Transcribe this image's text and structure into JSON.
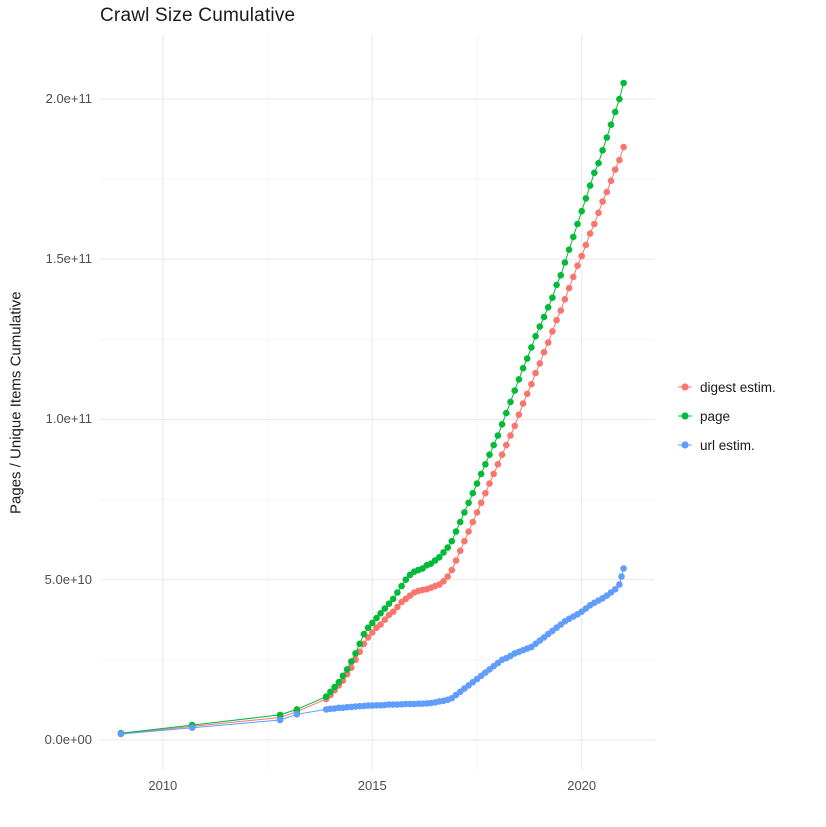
{
  "chart_data": {
    "type": "scatter",
    "geom": "point+line",
    "title": "Crawl Size Cumulative",
    "xlabel": "",
    "ylabel": "Pages / Unique Items Cumulative",
    "legend_position": "right",
    "grid": true,
    "panel": {
      "background": "#FFFFFF",
      "grid_major_color": "#EBEBEB",
      "grid_minor_color": "#F5F5F5"
    },
    "text_colors": {
      "title": "#1A1A1A",
      "axis_label": "#1A1A1A",
      "tick_label": "#4D4D4D"
    },
    "x_axis": {
      "range": [
        2008.5,
        2021.75
      ],
      "ticks": [
        2010,
        2015,
        2020
      ],
      "tick_labels": [
        "2010",
        "2015",
        "2020"
      ],
      "minor_ticks": [
        2012.5,
        2017.5
      ]
    },
    "y_axis": {
      "range": [
        -9400000000.0,
        220000000000.0
      ],
      "ticks": [
        0,
        50000000000.0,
        100000000000.0,
        150000000000.0,
        200000000000.0
      ],
      "tick_labels": [
        "0.0e+00",
        "5.0e+10",
        "1.0e+11",
        "1.5e+11",
        "2.0e+11"
      ],
      "minor_ticks": [
        25000000000.0,
        75000000000.0,
        125000000000.0,
        175000000000.0
      ]
    },
    "series": [
      {
        "name": "digest estim.",
        "color": "#F8766D",
        "points": [
          [
            2009.0,
            1900000000.0
          ],
          [
            2010.7,
            4200000000.0
          ],
          [
            2012.8,
            7000000000.0
          ],
          [
            2013.2,
            8800000000.0
          ],
          [
            2013.9,
            12800000000.0
          ],
          [
            2014.0,
            14000000000.0
          ],
          [
            2014.1,
            15500000000.0
          ],
          [
            2014.2,
            17000000000.0
          ],
          [
            2014.3,
            18500000000.0
          ],
          [
            2014.4,
            20500000000.0
          ],
          [
            2014.5,
            22500000000.0
          ],
          [
            2014.6,
            25000000000.0
          ],
          [
            2014.7,
            27500000000.0
          ],
          [
            2014.8,
            30000000000.0
          ],
          [
            2014.9,
            32000000000.0
          ],
          [
            2015.0,
            33500000000.0
          ],
          [
            2015.1,
            35000000000.0
          ],
          [
            2015.2,
            36000000000.0
          ],
          [
            2015.3,
            37500000000.0
          ],
          [
            2015.4,
            39000000000.0
          ],
          [
            2015.5,
            40000000000.0
          ],
          [
            2015.6,
            41500000000.0
          ],
          [
            2015.7,
            43000000000.0
          ],
          [
            2015.8,
            44000000000.0
          ],
          [
            2015.9,
            45000000000.0
          ],
          [
            2016.0,
            46000000000.0
          ],
          [
            2016.1,
            46500000000.0
          ],
          [
            2016.2,
            46800000000.0
          ],
          [
            2016.3,
            47000000000.0
          ],
          [
            2016.4,
            47500000000.0
          ],
          [
            2016.5,
            48000000000.0
          ],
          [
            2016.6,
            48500000000.0
          ],
          [
            2016.7,
            49500000000.0
          ],
          [
            2016.8,
            51000000000.0
          ],
          [
            2016.9,
            53000000000.0
          ],
          [
            2017.0,
            56000000000.0
          ],
          [
            2017.1,
            59000000000.0
          ],
          [
            2017.2,
            62000000000.0
          ],
          [
            2017.3,
            65000000000.0
          ],
          [
            2017.4,
            68000000000.0
          ],
          [
            2017.5,
            71000000000.0
          ],
          [
            2017.6,
            74000000000.0
          ],
          [
            2017.7,
            77000000000.0
          ],
          [
            2017.8,
            80000000000.0
          ],
          [
            2017.9,
            83000000000.0
          ],
          [
            2018.0,
            86000000000.0
          ],
          [
            2018.1,
            89000000000.0
          ],
          [
            2018.2,
            92000000000.0
          ],
          [
            2018.3,
            95000000000.0
          ],
          [
            2018.4,
            98000000000.0
          ],
          [
            2018.5,
            101500000000.0
          ],
          [
            2018.6,
            105000000000.0
          ],
          [
            2018.7,
            108000000000.0
          ],
          [
            2018.8,
            111000000000.0
          ],
          [
            2018.9,
            114500000000.0
          ],
          [
            2019.0,
            117500000000.0
          ],
          [
            2019.1,
            121000000000.0
          ],
          [
            2019.2,
            124000000000.0
          ],
          [
            2019.3,
            127500000000.0
          ],
          [
            2019.4,
            131000000000.0
          ],
          [
            2019.5,
            134000000000.0
          ],
          [
            2019.6,
            137500000000.0
          ],
          [
            2019.7,
            141000000000.0
          ],
          [
            2019.8,
            144500000000.0
          ],
          [
            2019.9,
            148000000000.0
          ],
          [
            2020.0,
            151000000000.0
          ],
          [
            2020.1,
            154500000000.0
          ],
          [
            2020.2,
            158000000000.0
          ],
          [
            2020.3,
            161000000000.0
          ],
          [
            2020.4,
            164500000000.0
          ],
          [
            2020.5,
            168000000000.0
          ],
          [
            2020.6,
            171000000000.0
          ],
          [
            2020.7,
            174500000000.0
          ],
          [
            2020.8,
            178000000000.0
          ],
          [
            2020.9,
            181000000000.0
          ],
          [
            2021.0,
            185000000000.0
          ]
        ]
      },
      {
        "name": "page",
        "color": "#00BA38",
        "points": [
          [
            2009.0,
            2100000000.0
          ],
          [
            2010.7,
            4600000000.0
          ],
          [
            2012.8,
            7800000000.0
          ],
          [
            2013.2,
            9500000000.0
          ],
          [
            2013.9,
            13500000000.0
          ],
          [
            2014.0,
            15000000000.0
          ],
          [
            2014.1,
            16500000000.0
          ],
          [
            2014.2,
            18000000000.0
          ],
          [
            2014.3,
            20000000000.0
          ],
          [
            2014.4,
            22000000000.0
          ],
          [
            2014.5,
            24500000000.0
          ],
          [
            2014.6,
            27000000000.0
          ],
          [
            2014.7,
            30000000000.0
          ],
          [
            2014.8,
            33000000000.0
          ],
          [
            2014.9,
            35000000000.0
          ],
          [
            2015.0,
            36500000000.0
          ],
          [
            2015.1,
            38000000000.0
          ],
          [
            2015.2,
            39500000000.0
          ],
          [
            2015.3,
            41000000000.0
          ],
          [
            2015.4,
            42500000000.0
          ],
          [
            2015.5,
            44000000000.0
          ],
          [
            2015.6,
            46000000000.0
          ],
          [
            2015.7,
            48000000000.0
          ],
          [
            2015.8,
            50000000000.0
          ],
          [
            2015.9,
            51500000000.0
          ],
          [
            2016.0,
            52500000000.0
          ],
          [
            2016.1,
            53000000000.0
          ],
          [
            2016.2,
            53500000000.0
          ],
          [
            2016.3,
            54500000000.0
          ],
          [
            2016.4,
            55000000000.0
          ],
          [
            2016.5,
            56000000000.0
          ],
          [
            2016.6,
            57000000000.0
          ],
          [
            2016.7,
            58500000000.0
          ],
          [
            2016.8,
            60000000000.0
          ],
          [
            2016.9,
            62000000000.0
          ],
          [
            2017.0,
            65000000000.0
          ],
          [
            2017.1,
            68000000000.0
          ],
          [
            2017.2,
            71000000000.0
          ],
          [
            2017.3,
            74000000000.0
          ],
          [
            2017.4,
            77000000000.0
          ],
          [
            2017.5,
            80000000000.0
          ],
          [
            2017.6,
            83000000000.0
          ],
          [
            2017.7,
            86000000000.0
          ],
          [
            2017.8,
            89000000000.0
          ],
          [
            2017.9,
            92000000000.0
          ],
          [
            2018.0,
            95000000000.0
          ],
          [
            2018.1,
            98500000000.0
          ],
          [
            2018.2,
            102000000000.0
          ],
          [
            2018.3,
            105500000000.0
          ],
          [
            2018.4,
            109000000000.0
          ],
          [
            2018.5,
            112500000000.0
          ],
          [
            2018.6,
            116000000000.0
          ],
          [
            2018.7,
            119000000000.0
          ],
          [
            2018.8,
            122500000000.0
          ],
          [
            2018.9,
            126000000000.0
          ],
          [
            2019.0,
            129000000000.0
          ],
          [
            2019.1,
            132000000000.0
          ],
          [
            2019.2,
            135000000000.0
          ],
          [
            2019.3,
            138000000000.0
          ],
          [
            2019.4,
            142000000000.0
          ],
          [
            2019.5,
            145000000000.0
          ],
          [
            2019.6,
            149000000000.0
          ],
          [
            2019.7,
            153000000000.0
          ],
          [
            2019.8,
            157000000000.0
          ],
          [
            2019.9,
            161000000000.0
          ],
          [
            2020.0,
            165000000000.0
          ],
          [
            2020.1,
            169000000000.0
          ],
          [
            2020.2,
            173000000000.0
          ],
          [
            2020.3,
            177000000000.0
          ],
          [
            2020.4,
            180000000000.0
          ],
          [
            2020.5,
            184000000000.0
          ],
          [
            2020.6,
            188000000000.0
          ],
          [
            2020.7,
            192000000000.0
          ],
          [
            2020.8,
            196000000000.0
          ],
          [
            2020.9,
            200000000000.0
          ],
          [
            2021.0,
            205000000000.0
          ]
        ]
      },
      {
        "name": "url estim.",
        "color": "#619CFF",
        "points": [
          [
            2009.0,
            1800000000.0
          ],
          [
            2010.7,
            3800000000.0
          ],
          [
            2012.8,
            6200000000.0
          ],
          [
            2013.2,
            8000000000.0
          ],
          [
            2013.9,
            9500000000.0
          ],
          [
            2014.0,
            9700000000.0
          ],
          [
            2014.1,
            9800000000.0
          ],
          [
            2014.2,
            10000000000.0
          ],
          [
            2014.3,
            10000000000.0
          ],
          [
            2014.4,
            10200000000.0
          ],
          [
            2014.5,
            10300000000.0
          ],
          [
            2014.6,
            10400000000.0
          ],
          [
            2014.7,
            10500000000.0
          ],
          [
            2014.8,
            10600000000.0
          ],
          [
            2014.9,
            10700000000.0
          ],
          [
            2015.0,
            10700000000.0
          ],
          [
            2015.1,
            10800000000.0
          ],
          [
            2015.2,
            10800000000.0
          ],
          [
            2015.3,
            10900000000.0
          ],
          [
            2015.4,
            11000000000.0
          ],
          [
            2015.5,
            11000000000.0
          ],
          [
            2015.6,
            11000000000.0
          ],
          [
            2015.7,
            11100000000.0
          ],
          [
            2015.8,
            11200000000.0
          ],
          [
            2015.9,
            11200000000.0
          ],
          [
            2016.0,
            11200000000.0
          ],
          [
            2016.1,
            11300000000.0
          ],
          [
            2016.2,
            11300000000.0
          ],
          [
            2016.3,
            11400000000.0
          ],
          [
            2016.4,
            11500000000.0
          ],
          [
            2016.5,
            11700000000.0
          ],
          [
            2016.6,
            12000000000.0
          ],
          [
            2016.7,
            12200000000.0
          ],
          [
            2016.8,
            12500000000.0
          ],
          [
            2016.9,
            13000000000.0
          ],
          [
            2017.0,
            14000000000.0
          ],
          [
            2017.1,
            15000000000.0
          ],
          [
            2017.2,
            16000000000.0
          ],
          [
            2017.3,
            17000000000.0
          ],
          [
            2017.4,
            18000000000.0
          ],
          [
            2017.5,
            19000000000.0
          ],
          [
            2017.6,
            20000000000.0
          ],
          [
            2017.7,
            21000000000.0
          ],
          [
            2017.8,
            22000000000.0
          ],
          [
            2017.9,
            23000000000.0
          ],
          [
            2018.0,
            24000000000.0
          ],
          [
            2018.1,
            25000000000.0
          ],
          [
            2018.2,
            25500000000.0
          ],
          [
            2018.3,
            26200000000.0
          ],
          [
            2018.4,
            27000000000.0
          ],
          [
            2018.5,
            27500000000.0
          ],
          [
            2018.6,
            28000000000.0
          ],
          [
            2018.7,
            28500000000.0
          ],
          [
            2018.8,
            29000000000.0
          ],
          [
            2018.9,
            30000000000.0
          ],
          [
            2019.0,
            31000000000.0
          ],
          [
            2019.1,
            32000000000.0
          ],
          [
            2019.2,
            33000000000.0
          ],
          [
            2019.3,
            34000000000.0
          ],
          [
            2019.4,
            35000000000.0
          ],
          [
            2019.5,
            36000000000.0
          ],
          [
            2019.6,
            37000000000.0
          ],
          [
            2019.7,
            37800000000.0
          ],
          [
            2019.8,
            38500000000.0
          ],
          [
            2019.9,
            39200000000.0
          ],
          [
            2020.0,
            40000000000.0
          ],
          [
            2020.1,
            41000000000.0
          ],
          [
            2020.2,
            42000000000.0
          ],
          [
            2020.3,
            42800000000.0
          ],
          [
            2020.4,
            43500000000.0
          ],
          [
            2020.5,
            44200000000.0
          ],
          [
            2020.6,
            45000000000.0
          ],
          [
            2020.7,
            46000000000.0
          ],
          [
            2020.8,
            47000000000.0
          ],
          [
            2020.9,
            48500000000.0
          ],
          [
            2020.95,
            51000000000.0
          ],
          [
            2021.0,
            53500000000.0
          ]
        ]
      }
    ]
  }
}
